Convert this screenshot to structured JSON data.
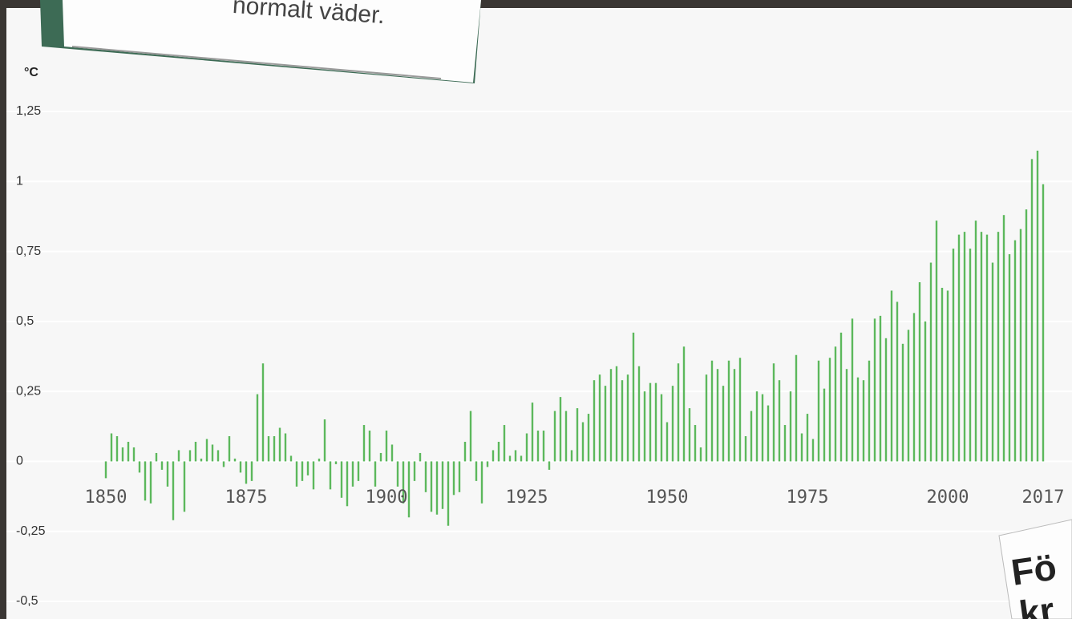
{
  "chart_data": {
    "type": "bar",
    "y_label": "°C",
    "x": [
      1850,
      1851,
      1852,
      1853,
      1854,
      1855,
      1856,
      1857,
      1858,
      1859,
      1860,
      1861,
      1862,
      1863,
      1864,
      1865,
      1866,
      1867,
      1868,
      1869,
      1870,
      1871,
      1872,
      1873,
      1874,
      1875,
      1876,
      1877,
      1878,
      1879,
      1880,
      1881,
      1882,
      1883,
      1884,
      1885,
      1886,
      1887,
      1888,
      1889,
      1890,
      1891,
      1892,
      1893,
      1894,
      1895,
      1896,
      1897,
      1898,
      1899,
      1900,
      1901,
      1902,
      1903,
      1904,
      1905,
      1906,
      1907,
      1908,
      1909,
      1910,
      1911,
      1912,
      1913,
      1914,
      1915,
      1916,
      1917,
      1918,
      1919,
      1920,
      1921,
      1922,
      1923,
      1924,
      1925,
      1926,
      1927,
      1928,
      1929,
      1930,
      1931,
      1932,
      1933,
      1934,
      1935,
      1936,
      1937,
      1938,
      1939,
      1940,
      1941,
      1942,
      1943,
      1944,
      1945,
      1946,
      1947,
      1948,
      1949,
      1950,
      1951,
      1952,
      1953,
      1954,
      1955,
      1956,
      1957,
      1958,
      1959,
      1960,
      1961,
      1962,
      1963,
      1964,
      1965,
      1966,
      1967,
      1968,
      1969,
      1970,
      1971,
      1972,
      1973,
      1974,
      1975,
      1976,
      1977,
      1978,
      1979,
      1980,
      1981,
      1982,
      1983,
      1984,
      1985,
      1986,
      1987,
      1988,
      1989,
      1990,
      1991,
      1992,
      1993,
      1994,
      1995,
      1996,
      1997,
      1998,
      1999,
      2000,
      2001,
      2002,
      2003,
      2004,
      2005,
      2006,
      2007,
      2008,
      2009,
      2010,
      2011,
      2012,
      2013,
      2014,
      2015,
      2016,
      2017
    ],
    "values": [
      -0.06,
      0.1,
      0.09,
      0.05,
      0.07,
      0.05,
      -0.04,
      -0.14,
      -0.15,
      0.03,
      -0.03,
      -0.09,
      -0.21,
      0.04,
      -0.18,
      0.04,
      0.07,
      0.01,
      0.08,
      0.06,
      0.04,
      -0.02,
      0.09,
      0.01,
      -0.04,
      -0.08,
      -0.07,
      0.24,
      0.35,
      0.09,
      0.09,
      0.12,
      0.1,
      0.02,
      -0.09,
      -0.07,
      -0.05,
      -0.1,
      0.01,
      0.15,
      -0.1,
      -0.01,
      -0.13,
      -0.16,
      -0.09,
      -0.07,
      0.13,
      0.11,
      -0.09,
      0.03,
      0.11,
      0.06,
      -0.09,
      -0.15,
      -0.2,
      -0.07,
      0.03,
      -0.11,
      -0.18,
      -0.19,
      -0.17,
      -0.23,
      -0.12,
      -0.11,
      0.07,
      0.18,
      -0.07,
      -0.15,
      -0.02,
      0.04,
      0.07,
      0.13,
      0.02,
      0.04,
      0.02,
      0.1,
      0.21,
      0.11,
      0.11,
      -0.03,
      0.18,
      0.23,
      0.18,
      0.04,
      0.19,
      0.14,
      0.17,
      0.29,
      0.31,
      0.27,
      0.33,
      0.34,
      0.29,
      0.31,
      0.46,
      0.34,
      0.25,
      0.28,
      0.28,
      0.24,
      0.14,
      0.27,
      0.35,
      0.41,
      0.19,
      0.13,
      0.05,
      0.31,
      0.36,
      0.33,
      0.27,
      0.36,
      0.33,
      0.37,
      0.09,
      0.18,
      0.25,
      0.24,
      0.2,
      0.35,
      0.29,
      0.13,
      0.25,
      0.38,
      0.1,
      0.17,
      0.08,
      0.36,
      0.26,
      0.37,
      0.41,
      0.46,
      0.33,
      0.51,
      0.3,
      0.29,
      0.36,
      0.51,
      0.52,
      0.44,
      0.61,
      0.57,
      0.42,
      0.47,
      0.53,
      0.64,
      0.5,
      0.71,
      0.86,
      0.62,
      0.61,
      0.76,
      0.81,
      0.82,
      0.76,
      0.86,
      0.82,
      0.81,
      0.71,
      0.82,
      0.88,
      0.74,
      0.79,
      0.83,
      0.9,
      1.08,
      1.11,
      0.99
    ],
    "color": "#5cb85c",
    "xlim": [
      1850,
      2017
    ],
    "xticks": [
      1850,
      1875,
      1900,
      1925,
      1950,
      1975,
      2000,
      2017
    ],
    "ylim": [
      -0.5,
      1.25
    ],
    "yticks": [
      {
        "value": -0.5,
        "label": "-0,5"
      },
      {
        "value": -0.25,
        "label": "-0,25"
      },
      0,
      {
        "value": 0.25,
        "label": "0,25"
      },
      {
        "value": 0.5,
        "label": "0,5"
      },
      {
        "value": 0.75,
        "label": "0,75"
      },
      1,
      {
        "value": 1.25,
        "label": "1,25"
      }
    ],
    "grid": true
  },
  "overlays": {
    "top_note": "normalt väder.",
    "bottom_note": [
      "Fö",
      "kr"
    ]
  }
}
